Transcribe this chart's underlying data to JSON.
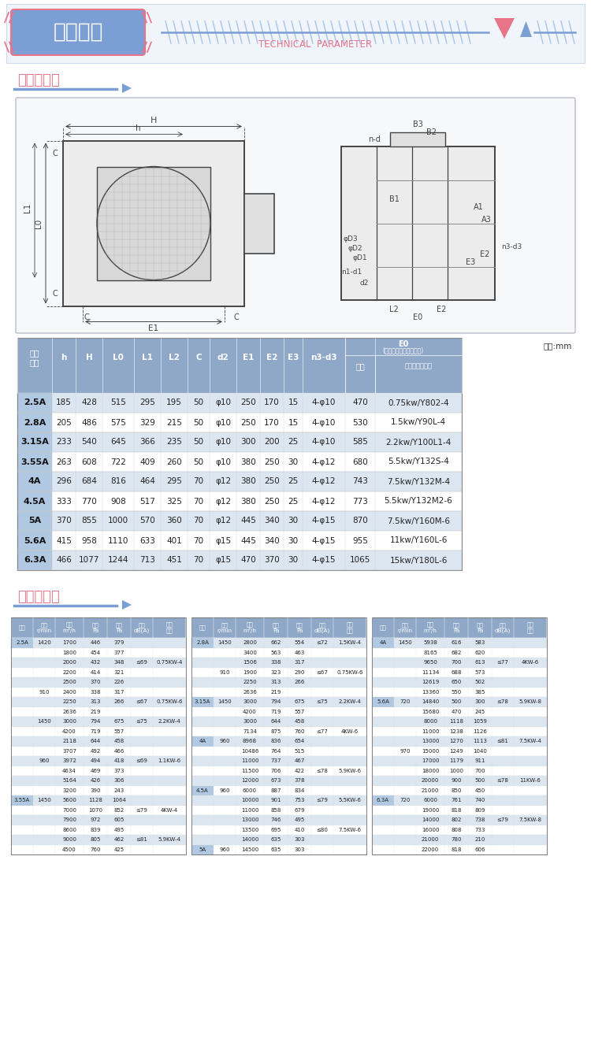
{
  "title_cn": "技术参数",
  "title_en": "TECHNICAL  PARAMETER",
  "section1_title": "外形尺寸图",
  "section2_title": "性能参数表",
  "bg_color": "#ffffff",
  "header_bg": "#8fa8c8",
  "row_alt_bg": "#dce6f1",
  "row_white_bg": "#ffffff",
  "title_box_bg": "#7b9fd4",
  "pink_color": "#e8748a",
  "blue_color": "#7b9fd4",
  "light_blue": "#aec6e8",
  "note_unit": "单位:mm",
  "dim_table_data": [
    [
      "2.5A",
      "185",
      "428",
      "515",
      "295",
      "195",
      "50",
      "φ10",
      "250",
      "170",
      "15",
      "4-φ10",
      "470",
      "0.75kw/Y802-4"
    ],
    [
      "2.8A",
      "205",
      "486",
      "575",
      "329",
      "215",
      "50",
      "φ10",
      "250",
      "170",
      "15",
      "4-φ10",
      "530",
      "1.5kw/Y90L-4"
    ],
    [
      "3.15A",
      "233",
      "540",
      "645",
      "366",
      "235",
      "50",
      "φ10",
      "300",
      "200",
      "25",
      "4-φ10",
      "585",
      "2.2kw/Y100L1-4"
    ],
    [
      "3.55A",
      "263",
      "608",
      "722",
      "409",
      "260",
      "50",
      "φ10",
      "380",
      "250",
      "30",
      "4-φ12",
      "680",
      "5.5kw/Y132S-4"
    ],
    [
      "4A",
      "296",
      "684",
      "816",
      "464",
      "295",
      "70",
      "φ12",
      "380",
      "250",
      "25",
      "4-φ12",
      "743",
      "7.5kw/Y132M-4"
    ],
    [
      "4.5A",
      "333",
      "770",
      "908",
      "517",
      "325",
      "70",
      "φ12",
      "380",
      "250",
      "25",
      "4-φ12",
      "773",
      "5.5kw/Y132M2-6"
    ],
    [
      "5A",
      "370",
      "855",
      "1000",
      "570",
      "360",
      "70",
      "φ12",
      "445",
      "340",
      "30",
      "4-φ15",
      "870",
      "7.5kw/Y160M-6"
    ],
    [
      "5.6A",
      "415",
      "958",
      "1110",
      "633",
      "401",
      "70",
      "φ15",
      "445",
      "340",
      "30",
      "4-φ15",
      "955",
      "11kw/Y160L-6"
    ],
    [
      "6.3A",
      "466",
      "1077",
      "1244",
      "713",
      "451",
      "70",
      "φ15",
      "470",
      "370",
      "30",
      "4-φ15",
      "1065",
      "15kw/Y180L-6"
    ]
  ],
  "left_perf": [
    [
      "2.5A",
      "1420",
      "1700",
      "446",
      "379",
      "",
      ""
    ],
    [
      "",
      "",
      "1800",
      "454",
      "377",
      "",
      ""
    ],
    [
      "",
      "",
      "2000",
      "432",
      "348",
      "≤69",
      "0.75KW-4"
    ],
    [
      "",
      "",
      "2200",
      "414",
      "321",
      "",
      ""
    ],
    [
      "",
      "",
      "2500",
      "370",
      "226",
      "",
      ""
    ],
    [
      "",
      "910",
      "2400",
      "338",
      "317",
      "",
      ""
    ],
    [
      "",
      "",
      "2250",
      "313",
      "266",
      "≤67",
      "0.75KW-6"
    ],
    [
      "",
      "",
      "2636",
      "219",
      "",
      "",
      ""
    ],
    [
      "",
      "1450",
      "3000",
      "794",
      "675",
      "≤75",
      "2.2KW-4"
    ],
    [
      "",
      "",
      "4200",
      "719",
      "557",
      "",
      ""
    ],
    [
      "",
      "",
      "2118",
      "644",
      "458",
      "",
      ""
    ],
    [
      "",
      "",
      "3707",
      "492",
      "466",
      "",
      ""
    ],
    [
      "",
      "960",
      "3972",
      "494",
      "418",
      "≤69",
      "1.1KW-6"
    ],
    [
      "",
      "",
      "4634",
      "469",
      "373",
      "",
      ""
    ],
    [
      "",
      "",
      "5164",
      "426",
      "306",
      "",
      ""
    ],
    [
      "",
      "",
      "3200",
      "390",
      "243",
      "",
      ""
    ],
    [
      "3.55A",
      "1450",
      "5600",
      "1128",
      "1064",
      "",
      ""
    ],
    [
      "",
      "",
      "7000",
      "1070",
      "852",
      "≤79",
      "4KW-4"
    ],
    [
      "",
      "",
      "7900",
      "972",
      "605",
      "",
      ""
    ],
    [
      "",
      "",
      "8600",
      "839",
      "495",
      "",
      ""
    ],
    [
      "",
      "",
      "9000",
      "805",
      "462",
      "≤81",
      "5.9KW-4"
    ],
    [
      "",
      "",
      "4500",
      "760",
      "425",
      "",
      ""
    ]
  ],
  "mid_perf": [
    [
      "2.8A",
      "1450",
      "2800",
      "662",
      "554",
      "≤72",
      "1.5KW-4"
    ],
    [
      "",
      "",
      "3400",
      "563",
      "463",
      "",
      ""
    ],
    [
      "",
      "",
      "1506",
      "338",
      "317",
      "",
      ""
    ],
    [
      "",
      "910",
      "1900",
      "323",
      "290",
      "≤67",
      "0.75KW-6"
    ],
    [
      "",
      "",
      "2250",
      "313",
      "266",
      "",
      ""
    ],
    [
      "",
      "",
      "2636",
      "219",
      "",
      "",
      ""
    ],
    [
      "3.15A",
      "1450",
      "3000",
      "794",
      "675",
      "≤75",
      "2.2KW-4"
    ],
    [
      "",
      "",
      "4200",
      "719",
      "557",
      "",
      ""
    ],
    [
      "",
      "",
      "3000",
      "644",
      "458",
      "",
      ""
    ],
    [
      "",
      "",
      "7134",
      "875",
      "760",
      "≤77",
      "4KW-6"
    ],
    [
      "4A",
      "960",
      "8968",
      "836",
      "654",
      "",
      ""
    ],
    [
      "",
      "",
      "10486",
      "764",
      "515",
      "",
      ""
    ],
    [
      "",
      "",
      "11000",
      "737",
      "467",
      "",
      ""
    ],
    [
      "",
      "",
      "11500",
      "706",
      "422",
      "≤78",
      "5.9KW-6"
    ],
    [
      "",
      "",
      "12000",
      "673",
      "378",
      "",
      ""
    ],
    [
      "4.5A",
      "960",
      "6000",
      "887",
      "834",
      "",
      ""
    ],
    [
      "",
      "",
      "10000",
      "901",
      "753",
      "≤79",
      "5.5KW-6"
    ],
    [
      "",
      "",
      "11000",
      "858",
      "679",
      "",
      ""
    ],
    [
      "",
      "",
      "13000",
      "746",
      "495",
      "",
      ""
    ],
    [
      "",
      "",
      "13500",
      "695",
      "410",
      "≤80",
      "7.5KW-6"
    ],
    [
      "",
      "",
      "14000",
      "635",
      "303",
      "",
      ""
    ],
    [
      "5A",
      "960",
      "14500",
      "635",
      "303",
      "",
      ""
    ]
  ],
  "right_perf": [
    [
      "4A",
      "1450",
      "5938",
      "616",
      "583",
      "",
      ""
    ],
    [
      "",
      "",
      "8165",
      "682",
      "620",
      "",
      ""
    ],
    [
      "",
      "",
      "9650",
      "700",
      "613",
      "≤77",
      "4KW-6"
    ],
    [
      "",
      "",
      "11134",
      "688",
      "573",
      "",
      ""
    ],
    [
      "",
      "",
      "12619",
      "650",
      "502",
      "",
      ""
    ],
    [
      "",
      "",
      "13360",
      "550",
      "385",
      "",
      ""
    ],
    [
      "5.6A",
      "720",
      "14840",
      "500",
      "300",
      "≤78",
      "5.9KW-8"
    ],
    [
      "",
      "",
      "15680",
      "470",
      "245",
      "",
      ""
    ],
    [
      "",
      "",
      "8000",
      "1118",
      "1059",
      "",
      ""
    ],
    [
      "",
      "",
      "11000",
      "1238",
      "1126",
      "",
      ""
    ],
    [
      "",
      "",
      "13000",
      "1270",
      "1113",
      "≤81",
      "7.5KW-4"
    ],
    [
      "",
      "970",
      "15000",
      "1249",
      "1040",
      "",
      ""
    ],
    [
      "",
      "",
      "17000",
      "1179",
      "911",
      "",
      ""
    ],
    [
      "",
      "",
      "18000",
      "1000",
      "700",
      "",
      ""
    ],
    [
      "",
      "",
      "20000",
      "900",
      "500",
      "≤78",
      "11KW-6"
    ],
    [
      "",
      "",
      "21000",
      "850",
      "450",
      "",
      ""
    ],
    [
      "6.3A",
      "720",
      "6000",
      "761",
      "740",
      "",
      ""
    ],
    [
      "",
      "",
      "19000",
      "818",
      "809",
      "",
      ""
    ],
    [
      "",
      "",
      "14000",
      "802",
      "738",
      "≤79",
      "7.5KW-8"
    ],
    [
      "",
      "",
      "16000",
      "808",
      "733",
      "",
      ""
    ],
    [
      "",
      "",
      "21000",
      "780",
      "210",
      "",
      ""
    ],
    [
      "",
      "",
      "22000",
      "818",
      "606",
      "",
      ""
    ]
  ]
}
